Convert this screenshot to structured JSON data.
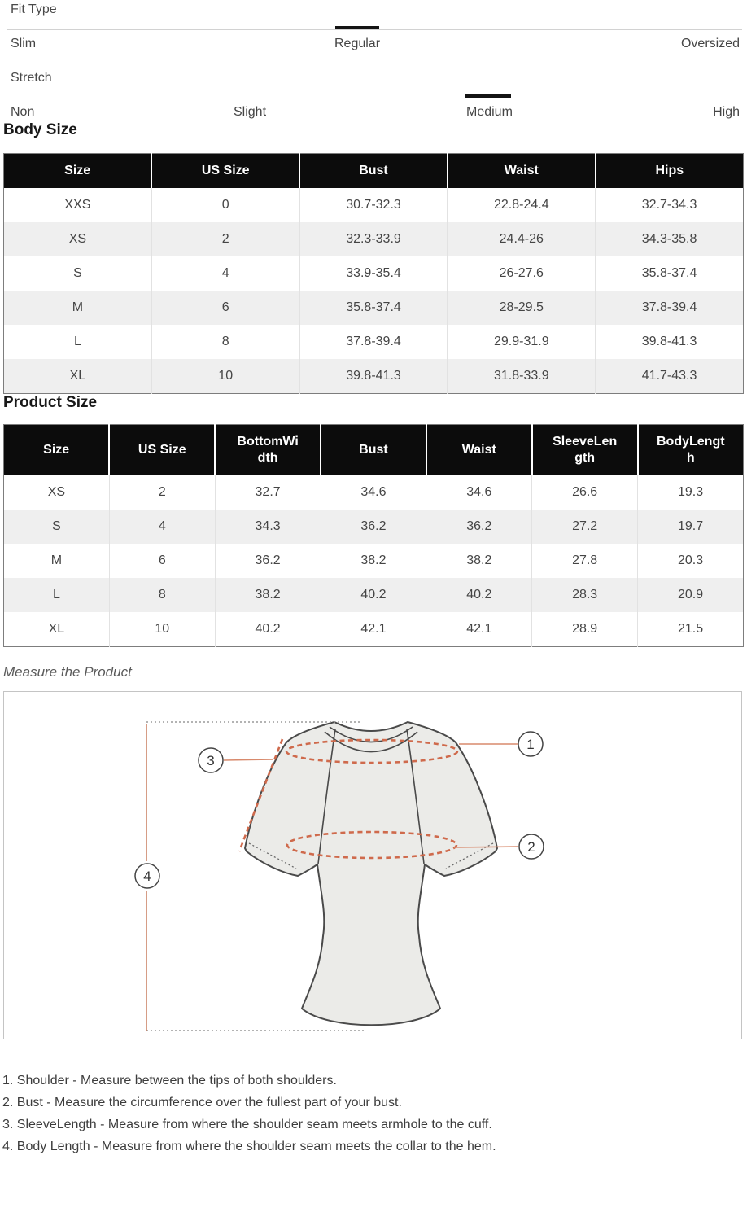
{
  "fit_selectors": [
    {
      "label": "Fit Type",
      "options": [
        "Slim",
        "Regular",
        "Oversized"
      ],
      "selected": "Regular"
    },
    {
      "label": "Stretch",
      "options": [
        "Non",
        "Slight",
        "Medium",
        "High"
      ],
      "selected": "Medium"
    }
  ],
  "body_size": {
    "title": "Body Size",
    "columns": [
      "Size",
      "US Size",
      "Bust",
      "Waist",
      "Hips"
    ],
    "rows": [
      [
        "XXS",
        "0",
        "30.7-32.3",
        "22.8-24.4",
        "32.7-34.3"
      ],
      [
        "XS",
        "2",
        "32.3-33.9",
        "24.4-26",
        "34.3-35.8"
      ],
      [
        "S",
        "4",
        "33.9-35.4",
        "26-27.6",
        "35.8-37.4"
      ],
      [
        "M",
        "6",
        "35.8-37.4",
        "28-29.5",
        "37.8-39.4"
      ],
      [
        "L",
        "8",
        "37.8-39.4",
        "29.9-31.9",
        "39.8-41.3"
      ],
      [
        "XL",
        "10",
        "39.8-41.3",
        "31.8-33.9",
        "41.7-43.3"
      ]
    ]
  },
  "product_size": {
    "title": "Product Size",
    "columns": [
      "Size",
      "US Size",
      "BottomWi\ndth",
      "Bust",
      "Waist",
      "SleeveLen\ngth",
      "BodyLengt\nh"
    ],
    "rows": [
      [
        "XS",
        "2",
        "32.7",
        "34.6",
        "34.6",
        "26.6",
        "19.3"
      ],
      [
        "S",
        "4",
        "34.3",
        "36.2",
        "36.2",
        "27.2",
        "19.7"
      ],
      [
        "M",
        "6",
        "36.2",
        "38.2",
        "38.2",
        "27.8",
        "20.3"
      ],
      [
        "L",
        "8",
        "38.2",
        "40.2",
        "40.2",
        "28.3",
        "20.9"
      ],
      [
        "XL",
        "10",
        "40.2",
        "42.1",
        "42.1",
        "28.9",
        "21.5"
      ]
    ]
  },
  "measure_note": "Measure the Product",
  "diagram": {
    "callouts": [
      "1",
      "2",
      "3",
      "4"
    ]
  },
  "instructions": [
    "1. Shoulder - Measure between the tips of both shoulders.",
    "2. Bust - Measure the circumference over the fullest part of your bust.",
    "3. SleeveLength - Measure from where the shoulder seam meets armhole to the cuff.",
    "4. Body Length - Measure from where the shoulder seam meets the collar to the hem."
  ],
  "colors": {
    "accent_dash": "#cf6a4c",
    "accent_line": "#d88a6d",
    "header_bg": "#0c0c0c",
    "row_alt": "#efefef",
    "shirt_fill": "#ebebe8",
    "shirt_outline": "#4a4a4a"
  }
}
